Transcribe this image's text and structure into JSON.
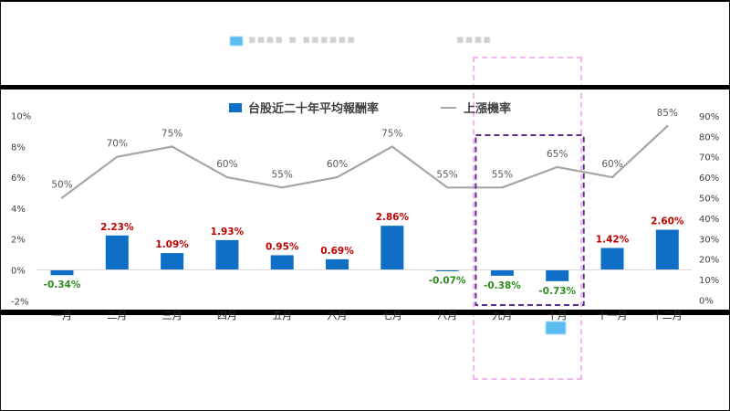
{
  "chart_data": {
    "type": "bar+line",
    "categories": [
      "一月",
      "二月",
      "三月",
      "四月",
      "五月",
      "六月",
      "七月",
      "八月",
      "九月",
      "十月",
      "十一月",
      "十二月"
    ],
    "series": [
      {
        "name": "台股近二十年平均報酬率",
        "type": "bar",
        "axis": "left",
        "values": [
          -0.34,
          2.23,
          1.09,
          1.93,
          0.95,
          0.69,
          2.86,
          -0.07,
          -0.38,
          -0.73,
          1.42,
          2.6
        ],
        "labels": [
          "-0.34%",
          "2.23%",
          "1.09%",
          "1.93%",
          "0.95%",
          "0.69%",
          "2.86%",
          "-0.07%",
          "-0.38%",
          "-0.73%",
          "1.42%",
          "2.60%"
        ]
      },
      {
        "name": "上漲機率",
        "type": "line",
        "axis": "right",
        "values": [
          50,
          70,
          75,
          60,
          55,
          60,
          75,
          55,
          55,
          65,
          60,
          85
        ],
        "labels": [
          "50%",
          "70%",
          "75%",
          "60%",
          "55%",
          "60%",
          "75%",
          "55%",
          "55%",
          "65%",
          "60%",
          "85%"
        ]
      }
    ],
    "y_left": {
      "ylim": [
        -2,
        10
      ],
      "ticks": [
        "-2%",
        "0%",
        "2%",
        "4%",
        "6%",
        "8%",
        "10%"
      ]
    },
    "y_right": {
      "ylim": [
        0,
        90
      ],
      "ticks": [
        "0%",
        "10%",
        "20%",
        "30%",
        "40%",
        "50%",
        "60%",
        "70%",
        "80%",
        "90%"
      ]
    },
    "legend_position": "top-center",
    "highlight": {
      "categories": [
        "九月",
        "十月"
      ],
      "style": "dashed-box",
      "color": "#5b2d8e"
    },
    "colors": {
      "bar": "#0f6fc6",
      "line": "#a6a6a6",
      "positive_label": "#c00000",
      "negative_label": "#2e8b1e",
      "line_label": "#595959"
    }
  }
}
